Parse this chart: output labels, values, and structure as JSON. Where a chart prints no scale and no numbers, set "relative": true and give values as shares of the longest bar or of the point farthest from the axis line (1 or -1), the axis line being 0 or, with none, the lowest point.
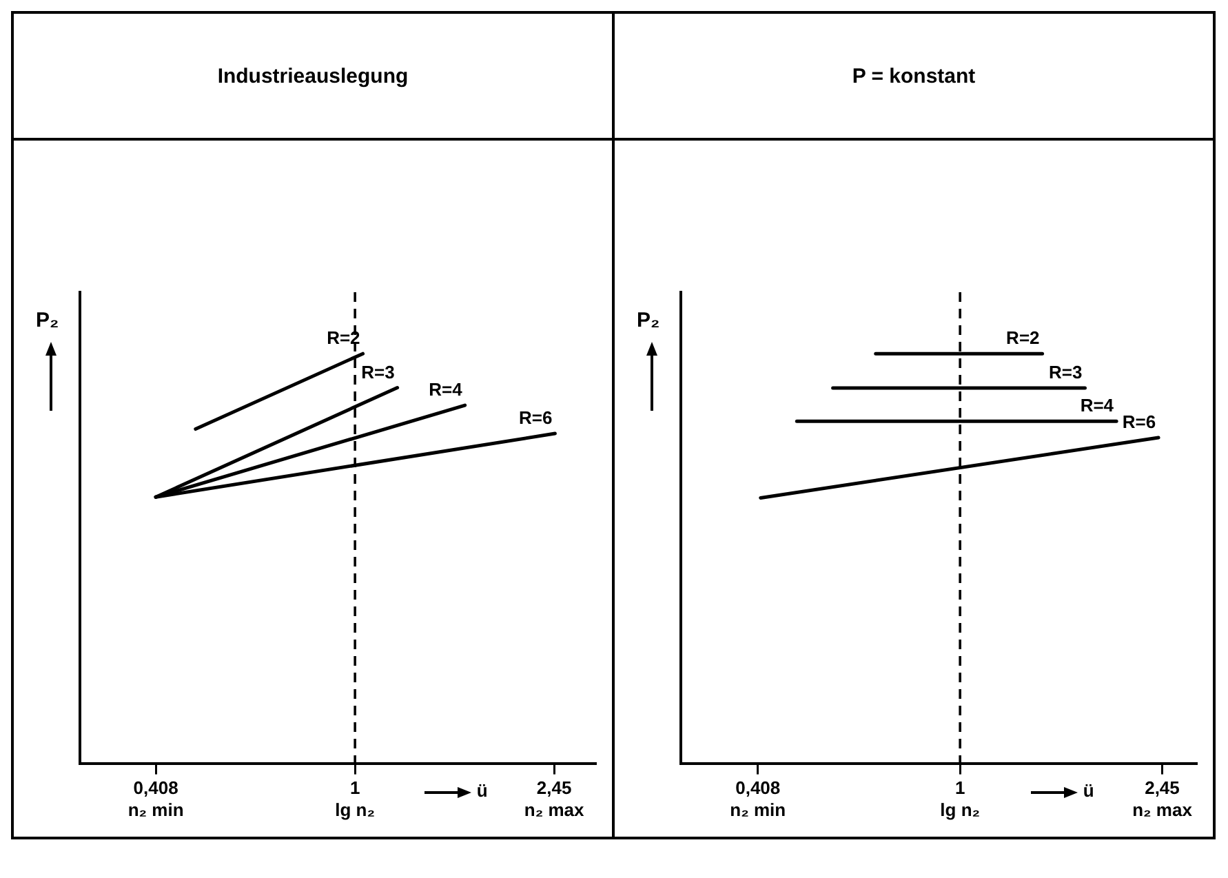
{
  "chart_data": [
    {
      "type": "line",
      "title": "Industrieauslegung",
      "xlabel": "ü",
      "ylabel": "P₂",
      "relative": true,
      "log": "x",
      "xlim": [
        0.29,
        2.95
      ],
      "xticks": [
        {
          "value": 0.408,
          "label": "0,408\nn₂ min"
        },
        {
          "value": 1,
          "label": "1\nlg n₂"
        },
        {
          "value": 2.45,
          "label": "2,45\nn₂ max"
        }
      ],
      "tick_labels": "x",
      "grid": false,
      "legend": false,
      "marker": "none",
      "ref_lines": [
        {
          "axis": "x",
          "value": 1,
          "color": "#000000",
          "line_style": "dashed"
        }
      ],
      "series": [
        {
          "name": "R=2",
          "color": "#000000",
          "x": [
            0.488,
            1.036
          ],
          "values": [
            0.816,
            1.0
          ]
        },
        {
          "name": "R=3",
          "color": "#000000",
          "x": [
            0.408,
            1.21
          ],
          "values": [
            0.65,
            0.917
          ]
        },
        {
          "name": "R=4",
          "color": "#000000",
          "x": [
            0.408,
            1.64
          ],
          "values": [
            0.65,
            0.874
          ]
        },
        {
          "name": "R=6",
          "color": "#000000",
          "x": [
            0.408,
            2.46
          ],
          "values": [
            0.65,
            0.805
          ]
        }
      ]
    },
    {
      "type": "line",
      "title": "P = konstant",
      "xlabel": "ü",
      "ylabel": "P₂",
      "relative": true,
      "log": "x",
      "xlim": [
        0.29,
        2.85
      ],
      "xticks": [
        {
          "value": 0.408,
          "label": "0,408\nn₂ min"
        },
        {
          "value": 1,
          "label": "1\nlg n₂"
        },
        {
          "value": 2.45,
          "label": "2,45\nn₂ max"
        }
      ],
      "tick_labels": "x",
      "grid": false,
      "legend": false,
      "marker": "none",
      "ref_lines": [
        {
          "axis": "x",
          "value": 1,
          "color": "#000000",
          "line_style": "dashed"
        }
      ],
      "series": [
        {
          "name": "R=2",
          "color": "#000000",
          "x": [
            0.688,
            1.44
          ],
          "values": [
            1.0,
            1.0
          ]
        },
        {
          "name": "R=3",
          "color": "#000000",
          "x": [
            0.569,
            1.74
          ],
          "values": [
            0.916,
            0.916
          ]
        },
        {
          "name": "R=4",
          "color": "#000000",
          "x": [
            0.485,
            2.0
          ],
          "values": [
            0.835,
            0.835
          ]
        },
        {
          "name": "R=6",
          "color": "#000000",
          "x": [
            0.413,
            2.41
          ],
          "values": [
            0.648,
            0.795
          ]
        }
      ]
    }
  ]
}
